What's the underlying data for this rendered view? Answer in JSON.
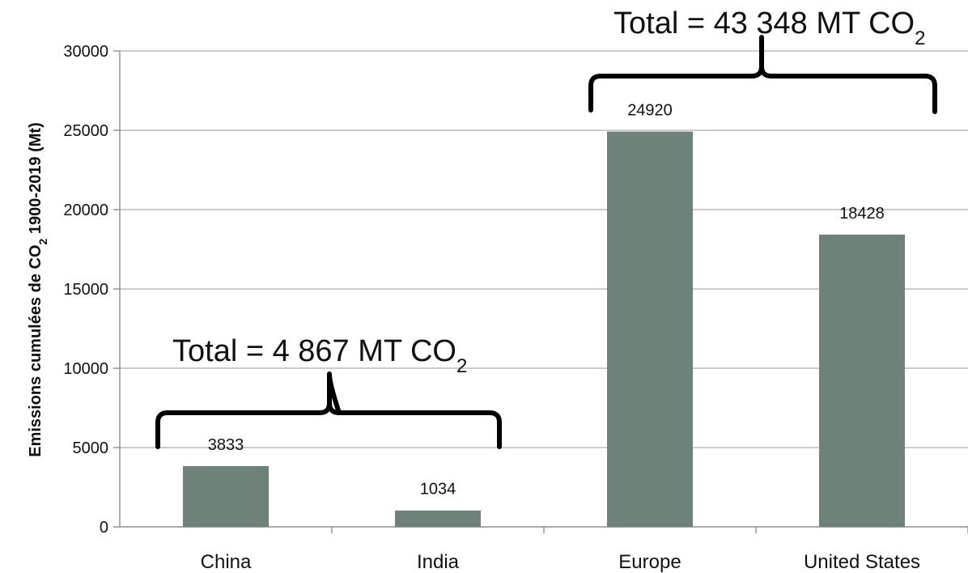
{
  "chart_data": {
    "type": "bar",
    "categories": [
      "China",
      "India",
      "Europe",
      "United States"
    ],
    "values": [
      3833,
      1034,
      24920,
      18428
    ],
    "data_labels": [
      "3833",
      "1034",
      "24920",
      "18428"
    ],
    "ylabel_parts": [
      "Emissions cumulées de CO",
      "2",
      " 1900-2019 (Mt)"
    ],
    "ylim": [
      0,
      30000
    ],
    "yticks": [
      0,
      5000,
      10000,
      15000,
      20000,
      25000,
      30000
    ],
    "ytick_labels": [
      "0",
      "5000",
      "10000",
      "15000",
      "20000",
      "25000",
      "30000"
    ],
    "grid": true,
    "bar_color": "#6f8279",
    "annotations": [
      {
        "text": "Total = 4 867 MT CO",
        "sub": "2",
        "spans_categories": [
          "China",
          "India"
        ]
      },
      {
        "text": "Total = 43 348 MT CO",
        "sub": "2",
        "spans_categories": [
          "Europe",
          "United States"
        ]
      }
    ]
  }
}
